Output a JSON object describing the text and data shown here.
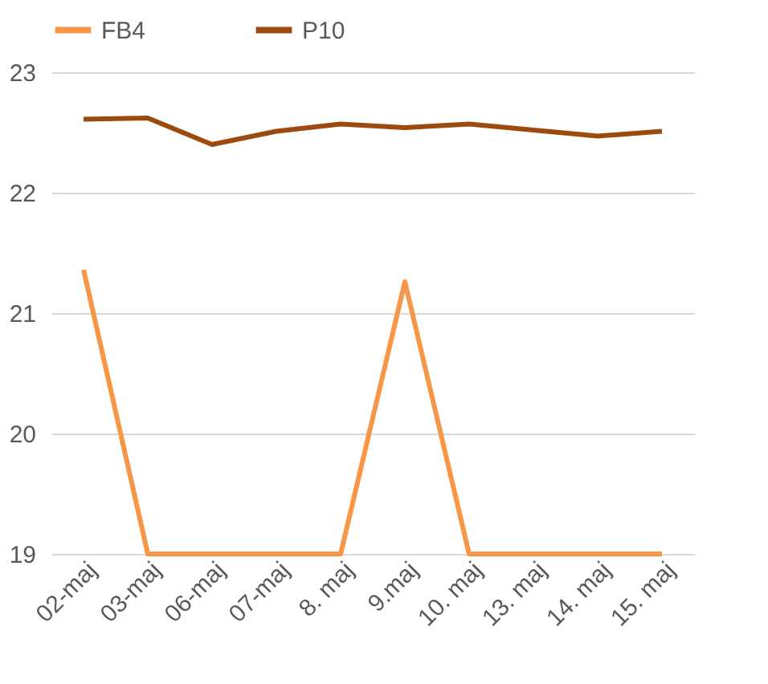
{
  "chart_data": {
    "type": "line",
    "categories": [
      "02-maj",
      "03-maj",
      "06-maj",
      "07-maj",
      "8. maj",
      "9.maj",
      "10. maj",
      "13. maj",
      "14. maj",
      "15. maj"
    ],
    "series": [
      {
        "name": "FB4",
        "color": "#f79646",
        "values": [
          21.36,
          19,
          19,
          19,
          19,
          21.26,
          19,
          19,
          19,
          19
        ]
      },
      {
        "name": "P10",
        "color": "#9c4a0e",
        "values": [
          22.61,
          22.62,
          22.4,
          22.51,
          22.57,
          22.54,
          22.57,
          22.52,
          22.47,
          22.51
        ]
      }
    ],
    "ylim": [
      19,
      23
    ],
    "yticks": [
      19,
      20,
      21,
      22,
      23
    ],
    "grid": "y",
    "legend": "top",
    "line_style": "solid",
    "marker": "none"
  }
}
